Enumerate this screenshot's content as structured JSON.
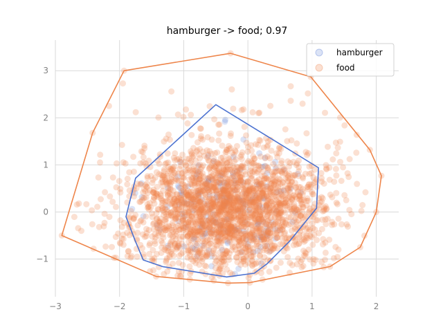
{
  "chart_data": {
    "type": "scatter",
    "title": "hamburger -> food; 0.97",
    "xlabel": "",
    "ylabel": "",
    "xlim": [
      -3.0,
      2.35
    ],
    "ylim": [
      -1.8,
      3.65
    ],
    "x_ticks": [
      -3,
      -2,
      -1,
      0,
      1,
      2
    ],
    "y_ticks": [
      -1,
      0,
      1,
      2,
      3
    ],
    "x_tick_labels": [
      "−3",
      "−2",
      "−1",
      "0",
      "1",
      "2"
    ],
    "y_tick_labels": [
      "−1",
      "0",
      "1",
      "2",
      "3"
    ],
    "grid": true,
    "legend_position": "top-right",
    "series": [
      {
        "name": "hamburger",
        "color": "#4c72d0",
        "marker": "circle",
        "alpha": 0.2,
        "hull": [
          [
            -0.5,
            2.28
          ],
          [
            1.1,
            0.94
          ],
          [
            1.07,
            0.08
          ],
          [
            0.65,
            -0.62
          ],
          [
            0.3,
            -1.1
          ],
          [
            0.1,
            -1.3
          ],
          [
            -0.33,
            -1.38
          ],
          [
            -1.33,
            -1.16
          ],
          [
            -1.63,
            -1.02
          ],
          [
            -1.76,
            -0.6
          ],
          [
            -1.9,
            -0.1
          ],
          [
            -1.75,
            0.72
          ]
        ]
      },
      {
        "name": "food",
        "color": "#ee854a",
        "marker": "circle",
        "alpha": 0.25,
        "hull": [
          [
            -0.27,
            3.37
          ],
          [
            0.98,
            2.87
          ],
          [
            1.9,
            1.32
          ],
          [
            2.08,
            0.77
          ],
          [
            2.0,
            0.0
          ],
          [
            1.75,
            -0.75
          ],
          [
            1.28,
            -1.16
          ],
          [
            0.03,
            -1.5
          ],
          [
            -0.31,
            -1.51
          ],
          [
            -1.43,
            -1.37
          ],
          [
            -2.9,
            -0.5
          ],
          [
            -2.42,
            1.68
          ],
          [
            -1.93,
            3.0
          ]
        ]
      }
    ]
  }
}
